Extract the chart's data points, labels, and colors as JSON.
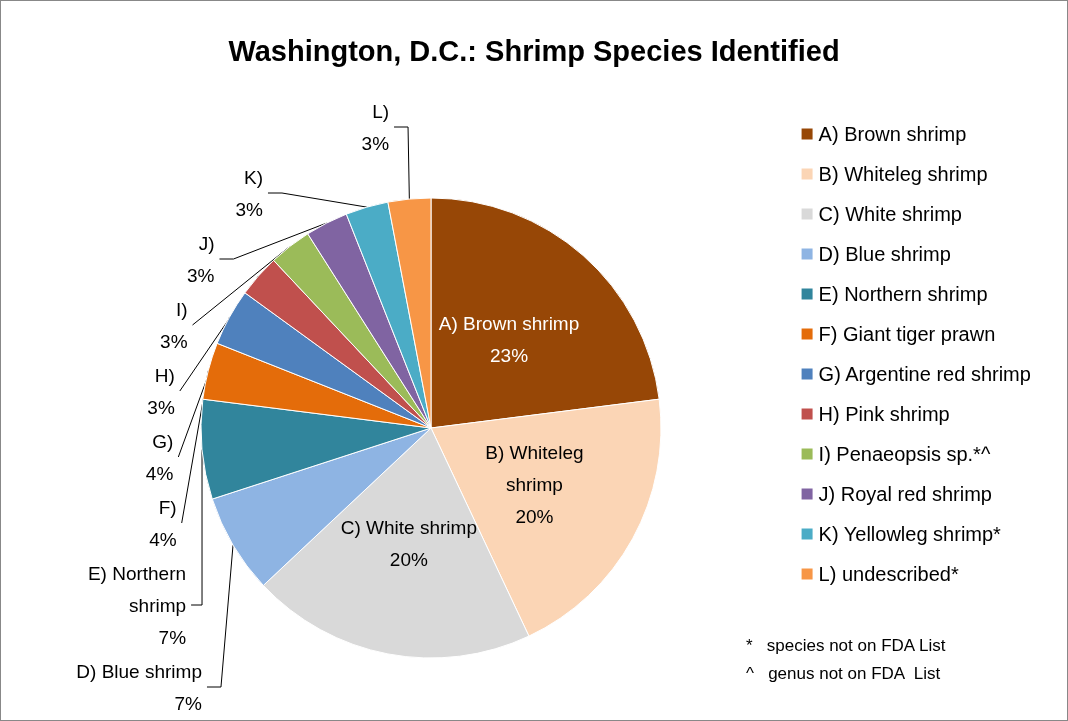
{
  "chart_data": {
    "type": "pie",
    "title": "Washington, D.C.: Shrimp Species Identified",
    "categories": [
      "A) Brown shrimp",
      "B) Whiteleg shrimp",
      "C) White shrimp",
      "D) Blue shrimp",
      "E) Northern shrimp",
      "F) Giant tiger prawn",
      "G) Argentine red shrimp",
      "H) Pink shrimp",
      "I) Penaeopsis sp.*^",
      "J) Royal red shrimp",
      "K) Yellowleg shrimp*",
      "L) undescribed*"
    ],
    "values": [
      23,
      20,
      20,
      7,
      7,
      4,
      4,
      3,
      3,
      3,
      3,
      3
    ],
    "value_labels": [
      "A) Brown shrimp\n23%",
      "B) Whiteleg\nshrimp\n20%",
      "C) White shrimp\n20%",
      "D) Blue shrimp\n7%",
      "E) Northern\nshrimp\n7%",
      "F)\n4%",
      "G)\n4%",
      "H)\n3%",
      "I)\n3%",
      "J)\n3%",
      "K)\n3%",
      "L)\n3%"
    ],
    "colors": [
      "#974706",
      "#fbd5b5",
      "#d9d9d9",
      "#8eb4e3",
      "#31859c",
      "#e46c0a",
      "#4f81bd",
      "#c0504d",
      "#9bbb59",
      "#8064a2",
      "#4bacc6",
      "#f79646"
    ],
    "legend": "right",
    "annotations": [
      "*   species not on FDA List",
      "^   genus not on FDA  List"
    ]
  }
}
